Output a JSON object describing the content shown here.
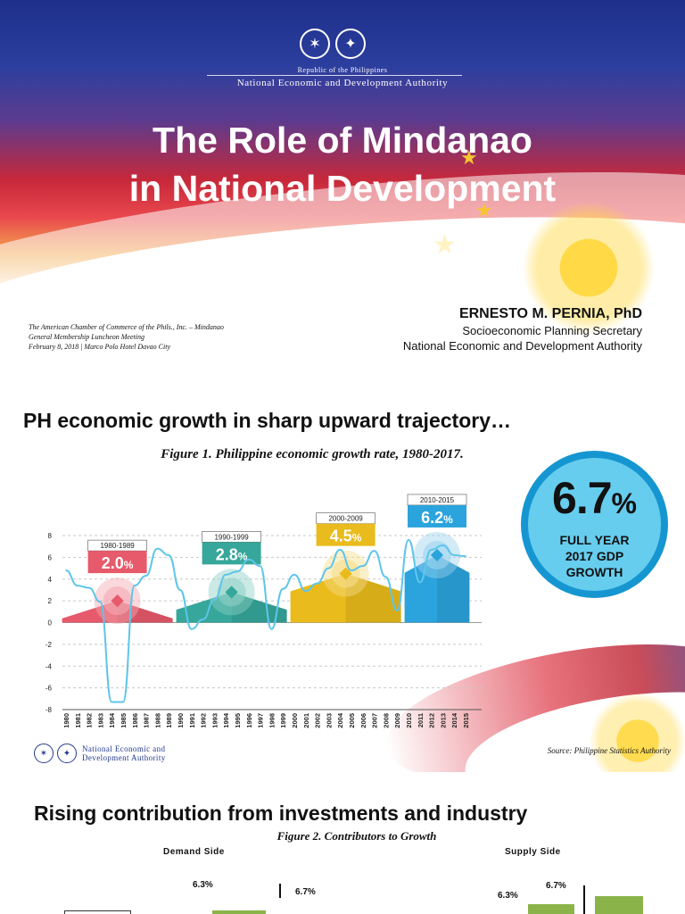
{
  "cover": {
    "republic": "Republic of the Philippines",
    "agency": "National Economic and Development Authority",
    "title_line1": "The Role of Mindanao",
    "title_line2": "in National Development",
    "event_line1": "The American Chamber of Commerce of the Phils., Inc. – Mindanao",
    "event_line2": "General Membership Luncheon Meeting",
    "event_line3": "February 8, 2018 | Marco Polo Hotel Davao City",
    "presenter_name": "ERNESTO M. PERNIA, PhD",
    "presenter_title": "Socioeconomic Planning Secretary",
    "presenter_agency": "National Economic and Development Authority",
    "colors": {
      "blue": "#1d2f8a",
      "red": "#c7283a",
      "gold": "#f7c531"
    },
    "icons": [
      "philippine-seal-icon",
      "neda-seal-icon",
      "star-icon",
      "sun-icon"
    ]
  },
  "growth": {
    "title": "PH economic growth in sharp upward trajectory…",
    "figure_caption": "Figure 1. Philippine economic growth rate, 1980-2017.",
    "kpi_value": "6.7",
    "kpi_unit": "%",
    "kpi_label_line1": "FULL YEAR",
    "kpi_label_line2": "2017 GDP",
    "kpi_label_line3": "GROWTH",
    "footer_agency_line1": "National Economic and",
    "footer_agency_line2": "Development Authority",
    "source": "Source: Philippine Statistics Authority",
    "decades": [
      {
        "label": "1980-1989",
        "value_num": "2.0",
        "value_pct": "%",
        "avg": 2.0,
        "color": "#e65a6b",
        "shade": "#f5a8b2"
      },
      {
        "label": "1990-1999",
        "value_num": "2.8",
        "value_pct": "%",
        "avg": 2.8,
        "color": "#36a79a",
        "shade": "#8fd0c6"
      },
      {
        "label": "2000-2009",
        "value_num": "4.5",
        "value_pct": "%",
        "avg": 4.5,
        "color": "#e9bb1c",
        "shade": "#f6dd8a"
      },
      {
        "label": "2010-2015",
        "value_num": "6.2",
        "value_pct": "%",
        "avg": 6.2,
        "color": "#2ba3dc",
        "shade": "#9dd3ee"
      }
    ],
    "chart_data": {
      "type": "line",
      "x": [
        1980,
        1981,
        1982,
        1983,
        1984,
        1985,
        1986,
        1987,
        1988,
        1989,
        1990,
        1991,
        1992,
        1993,
        1994,
        1995,
        1996,
        1997,
        1998,
        1999,
        2000,
        2001,
        2002,
        2003,
        2004,
        2005,
        2006,
        2007,
        2008,
        2009,
        2010,
        2011,
        2012,
        2013,
        2014,
        2015
      ],
      "x_tick_labels": [
        "1980",
        "1981",
        "1982",
        "1983",
        "1984",
        "1985",
        "1986",
        "1987",
        "1988",
        "1989",
        "1990",
        "1991",
        "1992",
        "1993",
        "1994",
        "1995",
        "1996",
        "1997",
        "1998",
        "1999",
        "2000",
        "2001",
        "2002",
        "2003",
        "2004",
        "2005",
        "2006",
        "2007",
        "2008",
        "2009",
        "2010",
        "2011",
        "2012",
        "2013",
        "2014",
        "2015"
      ],
      "series": [
        {
          "values": [
            4.8,
            3.4,
            3.2,
            1.9,
            -7.3,
            -7.3,
            3.4,
            4.3,
            6.8,
            6.2,
            3.0,
            -0.6,
            0.3,
            2.1,
            4.4,
            4.7,
            5.8,
            5.2,
            -0.6,
            3.1,
            4.4,
            2.9,
            3.6,
            5.0,
            6.7,
            4.8,
            5.2,
            6.6,
            4.2,
            1.1,
            7.6,
            3.7,
            6.7,
            7.1,
            6.2,
            6.1
          ],
          "color": "#5ec5ea"
        }
      ],
      "yticks": [
        "8",
        "6",
        "4",
        "2",
        "0",
        "-2",
        "-4",
        "-6",
        "-8"
      ],
      "ylim": [
        -8,
        8
      ],
      "grid": true
    }
  },
  "contrib": {
    "title": "Rising contribution from investments and industry",
    "figure_caption": "Figure 2. Contributors to Growth",
    "demand_label": "Demand Side",
    "supply_label": "Supply Side",
    "demand_val1": "6.3%",
    "demand_val2": "6.7%",
    "supply_val1": "6.3%",
    "supply_val2": "6.7%",
    "bar_color": "#8ab34a"
  }
}
